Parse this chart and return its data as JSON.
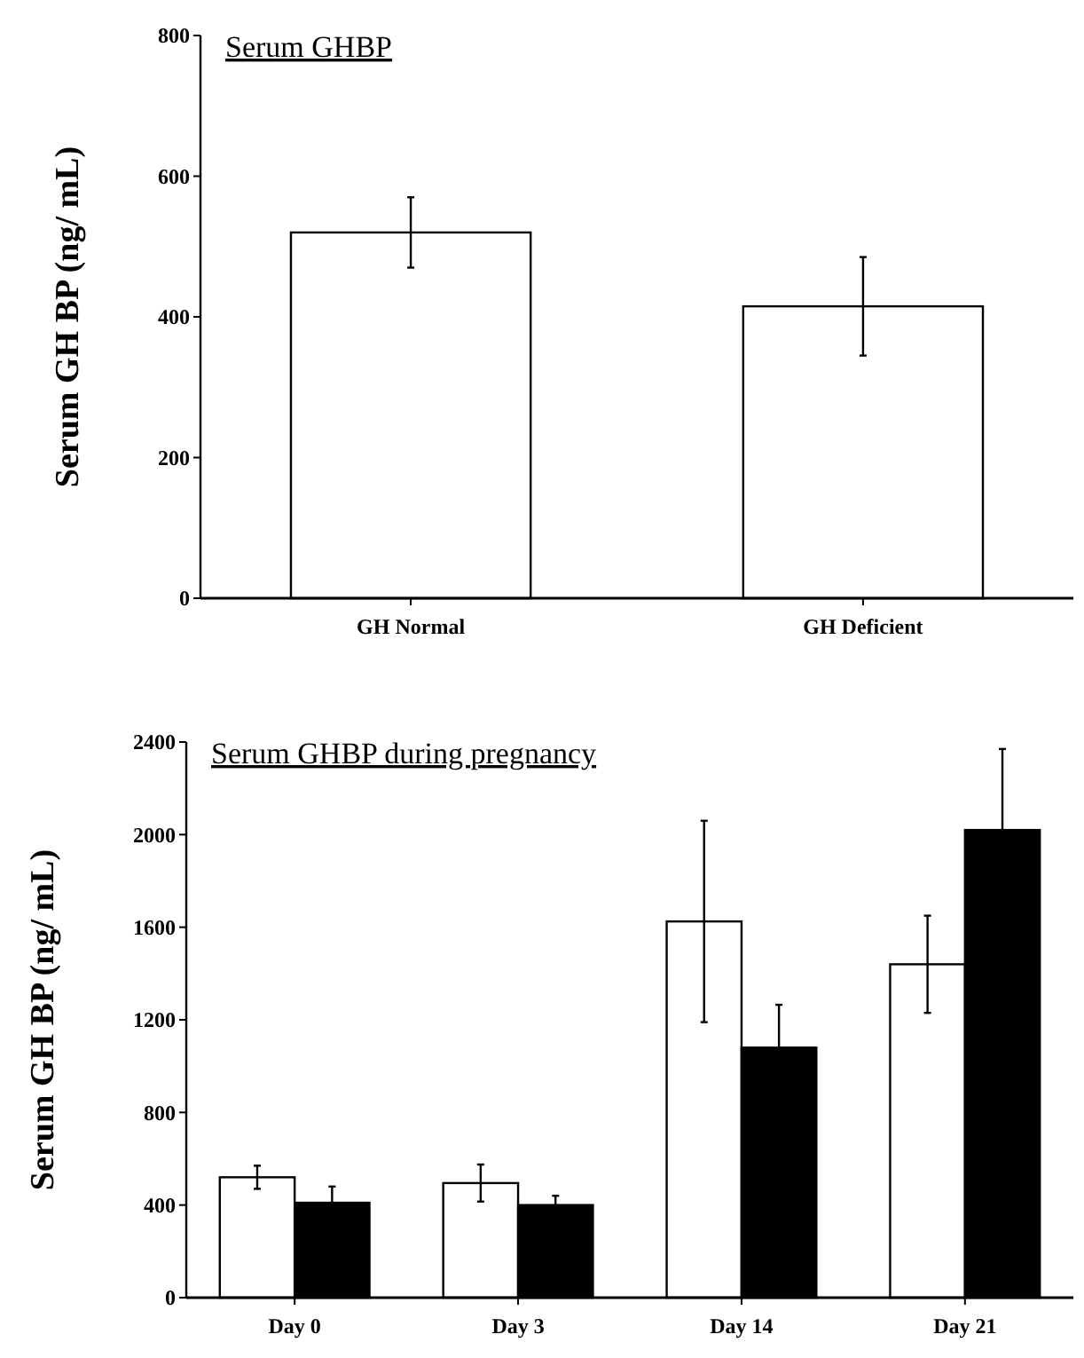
{
  "chart_data": [
    {
      "type": "bar",
      "title": "Serum GHBP",
      "ylabel": "Serum  GH  BP  (ng/ mL)",
      "categories": [
        "GH Normal",
        "GH Deficient"
      ],
      "series": [
        {
          "color": "#ffffff",
          "values": [
            520,
            415
          ],
          "errors": [
            50,
            70
          ]
        }
      ],
      "ylim": [
        0,
        800
      ],
      "yticks": [
        0,
        200,
        400,
        600,
        800
      ],
      "grid": false
    },
    {
      "type": "bar",
      "title": "Serum GHBP  during pregnancy",
      "ylabel": "Serum  GH  BP  (ng/ mL)",
      "categories": [
        "Day 0",
        "Day 3",
        "Day 14",
        "Day 21"
      ],
      "series": [
        {
          "color": "#ffffff",
          "values": [
            520,
            495,
            1625,
            1440
          ],
          "errors": [
            50,
            80,
            435,
            210
          ]
        },
        {
          "color": "#000000",
          "values": [
            410,
            400,
            1080,
            2020
          ],
          "errors": [
            [
              410,
              480
            ],
            [
              400,
              440
            ],
            [
              1080,
              1265
            ],
            [
              2020,
              2370
            ]
          ]
        }
      ],
      "ylim": [
        0,
        2400
      ],
      "yticks": [
        0,
        400,
        800,
        1200,
        1600,
        2000,
        2400
      ],
      "grid": false
    }
  ]
}
